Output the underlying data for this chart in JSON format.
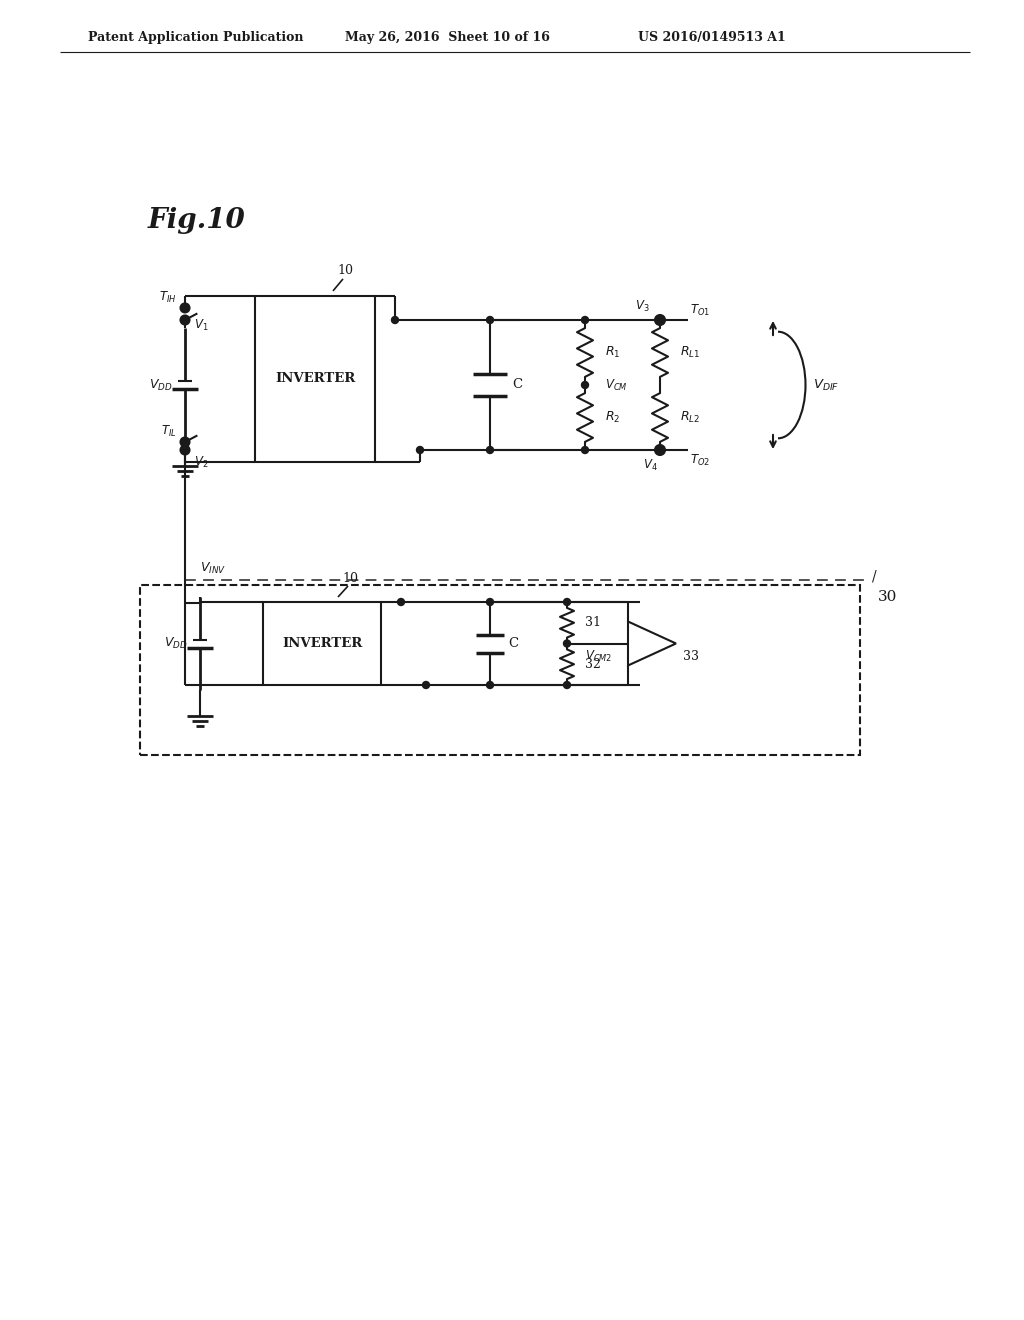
{
  "header_left": "Patent Application Publication",
  "header_mid": "May 26, 2016  Sheet 10 of 16",
  "header_right": "US 2016/0149513 A1",
  "fig_label": "Fig.10",
  "bg": "#ffffff",
  "lc": "#1a1a1a"
}
